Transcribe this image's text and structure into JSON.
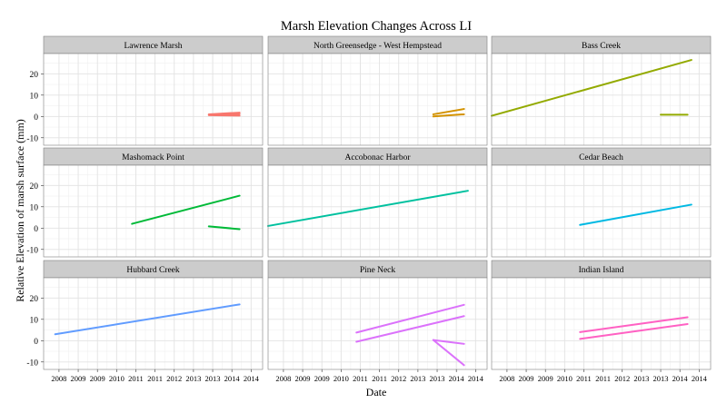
{
  "chart_data": {
    "type": "line",
    "title": "Marsh Elevation Changes Across LI",
    "xlabel": "Date",
    "ylabel": "Relative Elevation of marsh surface (mm)",
    "x_ticks": [
      "2008",
      "2009",
      "2009",
      "2010",
      "2011",
      "2011",
      "2012",
      "2013",
      "2013",
      "2014",
      "2014"
    ],
    "x_tick_values": [
      2008.0,
      2008.5,
      2009.0,
      2009.5,
      2010.0,
      2010.5,
      2011.0,
      2011.5,
      2012.0,
      2012.5,
      2013.0
    ],
    "xlim": [
      2007.6,
      2013.3
    ],
    "y_ticks": [
      -10,
      0,
      10,
      20
    ],
    "ylim": [
      -13.5,
      29.5
    ],
    "grid": true,
    "layout": "3x3 facets",
    "panels": [
      {
        "name": "Lawrence Marsh",
        "color": "#f8766d",
        "segments": [
          {
            "x": [
              2011.9,
              2012.7
            ],
            "y": [
              1.0,
              1.8
            ]
          },
          {
            "x": [
              2011.9,
              2012.7
            ],
            "y": [
              0.6,
              0.4
            ]
          },
          {
            "x": [
              2011.9,
              2012.7
            ],
            "y": [
              0.8,
              1.2
            ]
          }
        ]
      },
      {
        "name": "North Greensedge - West Hempstead",
        "color": "#d39200",
        "segments": [
          {
            "x": [
              2011.9,
              2012.7
            ],
            "y": [
              1.0,
              3.5
            ]
          },
          {
            "x": [
              2011.9,
              2012.7
            ],
            "y": [
              0.0,
              1.0
            ]
          }
        ]
      },
      {
        "name": "Bass Creek",
        "color": "#93aa00",
        "segments": [
          {
            "x": [
              2007.6,
              2012.8
            ],
            "y": [
              0.3,
              26.5
            ]
          },
          {
            "x": [
              2012.0,
              2012.7
            ],
            "y": [
              0.8,
              0.8
            ]
          }
        ]
      },
      {
        "name": "Mashomack Point",
        "color": "#00ba38",
        "segments": [
          {
            "x": [
              2009.9,
              2012.7
            ],
            "y": [
              2.0,
              15.2
            ]
          },
          {
            "x": [
              2011.9,
              2012.7
            ],
            "y": [
              0.8,
              -0.5
            ]
          }
        ]
      },
      {
        "name": "Accobonac Harbor",
        "color": "#00c19f",
        "segments": [
          {
            "x": [
              2007.6,
              2012.8
            ],
            "y": [
              1.0,
              17.5
            ]
          }
        ]
      },
      {
        "name": "Cedar Beach",
        "color": "#00b9e3",
        "segments": [
          {
            "x": [
              2009.9,
              2012.8
            ],
            "y": [
              1.5,
              11.0
            ]
          }
        ]
      },
      {
        "name": "Hubbard Creek",
        "color": "#619cff",
        "segments": [
          {
            "x": [
              2007.9,
              2012.7
            ],
            "y": [
              3.0,
              17.0
            ]
          }
        ]
      },
      {
        "name": "Pine Neck",
        "color": "#db72fb",
        "segments": [
          {
            "x": [
              2009.9,
              2012.7
            ],
            "y": [
              3.8,
              16.8
            ]
          },
          {
            "x": [
              2009.9,
              2012.7
            ],
            "y": [
              -0.5,
              11.5
            ]
          },
          {
            "x": [
              2011.9,
              2012.7
            ],
            "y": [
              0.3,
              -1.5
            ]
          },
          {
            "x": [
              2011.9,
              2012.7
            ],
            "y": [
              0.3,
              -11.5
            ]
          }
        ]
      },
      {
        "name": "Indian Island",
        "color": "#ff61c3",
        "segments": [
          {
            "x": [
              2009.9,
              2012.7
            ],
            "y": [
              4.0,
              11.0
            ]
          },
          {
            "x": [
              2009.9,
              2012.7
            ],
            "y": [
              0.8,
              7.8
            ]
          }
        ]
      }
    ]
  }
}
